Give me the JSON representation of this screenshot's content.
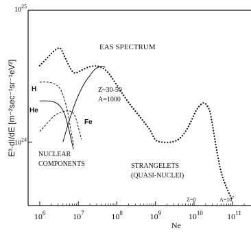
{
  "chart_data": {
    "type": "line",
    "title": "EAS SPECTRUM",
    "xlabel": "Ne",
    "ylabel": "E³·dI/dE [m⁻²sec⁻¹sr⁻¹eV²]",
    "x_scale": "log",
    "y_scale": "log",
    "xlim": [
      500000,
      300000000000
    ],
    "ylim": [
      3.3e+23,
      1e+25
    ],
    "x_ticks": [
      {
        "value": 1000000,
        "base": "10",
        "exp": "6"
      },
      {
        "value": 10000000,
        "base": "10",
        "exp": "7"
      },
      {
        "value": 100000000,
        "base": "10",
        "exp": "8"
      },
      {
        "value": 1000000000,
        "base": "10",
        "exp": "9"
      },
      {
        "value": 10000000000,
        "base": "10",
        "exp": "10"
      },
      {
        "value": 100000000000,
        "base": "10",
        "exp": "11"
      }
    ],
    "y_ticks": [
      {
        "value": 1e+24,
        "base": "10",
        "exp": "24"
      },
      {
        "value": 1e+25,
        "base": "10",
        "exp": "25"
      }
    ],
    "series": [
      {
        "name": "EAS SPECTRUM",
        "style": "dotted",
        "x": [
          1000000,
          1400000,
          2000000,
          2800000,
          3500000,
          4500000,
          6000000,
          8000000,
          12000000,
          18000000,
          28000000,
          40000000,
          60000000,
          100000000,
          200000000,
          400000000,
          700000000,
          1000000000,
          1500000000,
          2500000000,
          4000000000,
          6000000000,
          8000000000,
          12000000000,
          18000000000,
          25000000000,
          30000000000,
          38000000000,
          50000000000,
          70000000000,
          100000000000
        ],
        "y": [
          3.8e+24,
          4.2e+24,
          4.7e+24,
          5.1e+24,
          5.1e+24,
          4.4e+24,
          3.7e+24,
          3.35e+24,
          3.5e+24,
          3.7e+24,
          3.78e+24,
          3.68e+24,
          3.35e+24,
          2.7e+24,
          2e+24,
          1.55e+24,
          1.25e+24,
          1.04e+24,
          1e+24,
          1e+24,
          1.05e+24,
          1.2e+24,
          1.4e+24,
          1.78e+24,
          1.98e+24,
          1.75e+24,
          1.35e+24,
          9e+23,
          6e+23,
          4.5e+23,
          3.6e+23
        ]
      },
      {
        "name": "H",
        "style": "dashed",
        "x": [
          1000000,
          1600000,
          2500000,
          3500000,
          4500000,
          5500000,
          6500000,
          7500000
        ],
        "y": [
          2.85e+24,
          2.85e+24,
          2.75e+24,
          2.5e+24,
          2.05e+24,
          1.6e+24,
          1.2e+24,
          9.5e+23
        ]
      },
      {
        "name": "He",
        "style": "solid",
        "x": [
          1000000,
          1600000,
          2500000,
          3500000,
          4500000,
          5500000,
          6500000,
          7500000
        ],
        "y": [
          2.05e+24,
          2.05e+24,
          2e+24,
          1.85e+24,
          1.6e+24,
          1.3e+24,
          1.05e+24,
          8.8e+23
        ]
      },
      {
        "name": "Fe",
        "style": "dashed",
        "x": [
          1000000,
          1600000,
          2500000,
          4000000,
          6000000,
          8000000,
          10000000,
          12000000
        ],
        "y": [
          1.2e+24,
          1.4e+24,
          1.6e+24,
          1.7e+24,
          1.72e+24,
          1.6e+24,
          1.3e+24,
          1.05e+24
        ]
      },
      {
        "name": "Z~30-50",
        "style": "solid",
        "x": [
          4000000,
          6000000,
          9000000,
          14000000,
          20000000,
          28000000,
          40000000,
          50000000
        ],
        "y": [
          1e+24,
          1.5e+24,
          2.1e+24,
          2.75e+24,
          3.2e+24,
          3.6e+24,
          3.75e+24,
          3.7e+24
        ]
      }
    ],
    "annotations": {
      "H": "H",
      "He": "He",
      "Fe": "Fe",
      "z_label": "Z~30-50",
      "a_label": "A=1000",
      "nuclear_1": "NUCLEAR",
      "nuclear_2": "COMPONENTS",
      "strangelets_1": "STRANGELETS",
      "strangelets_2": "(QUASI-NUCLEI)",
      "z0": "Z=0",
      "a7_base": "A=10",
      "a7_exp": "7"
    },
    "grid": false,
    "legend": "none"
  }
}
